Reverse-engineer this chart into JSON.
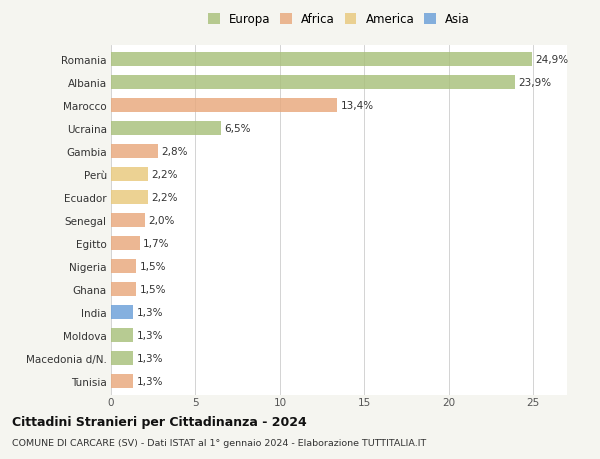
{
  "categories": [
    "Romania",
    "Albania",
    "Marocco",
    "Ucraina",
    "Gambia",
    "Perù",
    "Ecuador",
    "Senegal",
    "Egitto",
    "Nigeria",
    "Ghana",
    "India",
    "Moldova",
    "Macedonia d/N.",
    "Tunisia"
  ],
  "values": [
    24.9,
    23.9,
    13.4,
    6.5,
    2.8,
    2.2,
    2.2,
    2.0,
    1.7,
    1.5,
    1.5,
    1.3,
    1.3,
    1.3,
    1.3
  ],
  "labels": [
    "24,9%",
    "23,9%",
    "13,4%",
    "6,5%",
    "2,8%",
    "2,2%",
    "2,2%",
    "2,0%",
    "1,7%",
    "1,5%",
    "1,5%",
    "1,3%",
    "1,3%",
    "1,3%",
    "1,3%"
  ],
  "continents": [
    "Europa",
    "Europa",
    "Africa",
    "Europa",
    "Africa",
    "America",
    "America",
    "Africa",
    "Africa",
    "Africa",
    "Africa",
    "Asia",
    "Europa",
    "Europa",
    "Africa"
  ],
  "colors": {
    "Europa": "#a8c07a",
    "Africa": "#e8a87c",
    "America": "#e8c87c",
    "Asia": "#6a9fd8"
  },
  "xlim": [
    0,
    27
  ],
  "xticks": [
    0,
    5,
    10,
    15,
    20,
    25
  ],
  "title": "Cittadini Stranieri per Cittadinanza - 2024",
  "subtitle": "COMUNE DI CARCARE (SV) - Dati ISTAT al 1° gennaio 2024 - Elaborazione TUTTITALIA.IT",
  "background_color": "#f5f5f0",
  "bar_background": "#ffffff",
  "grid_color": "#cccccc",
  "label_fontsize": 7.5,
  "tick_fontsize": 7.5,
  "title_fontsize": 9,
  "subtitle_fontsize": 6.8,
  "bar_height": 0.6,
  "bar_alpha": 0.82
}
